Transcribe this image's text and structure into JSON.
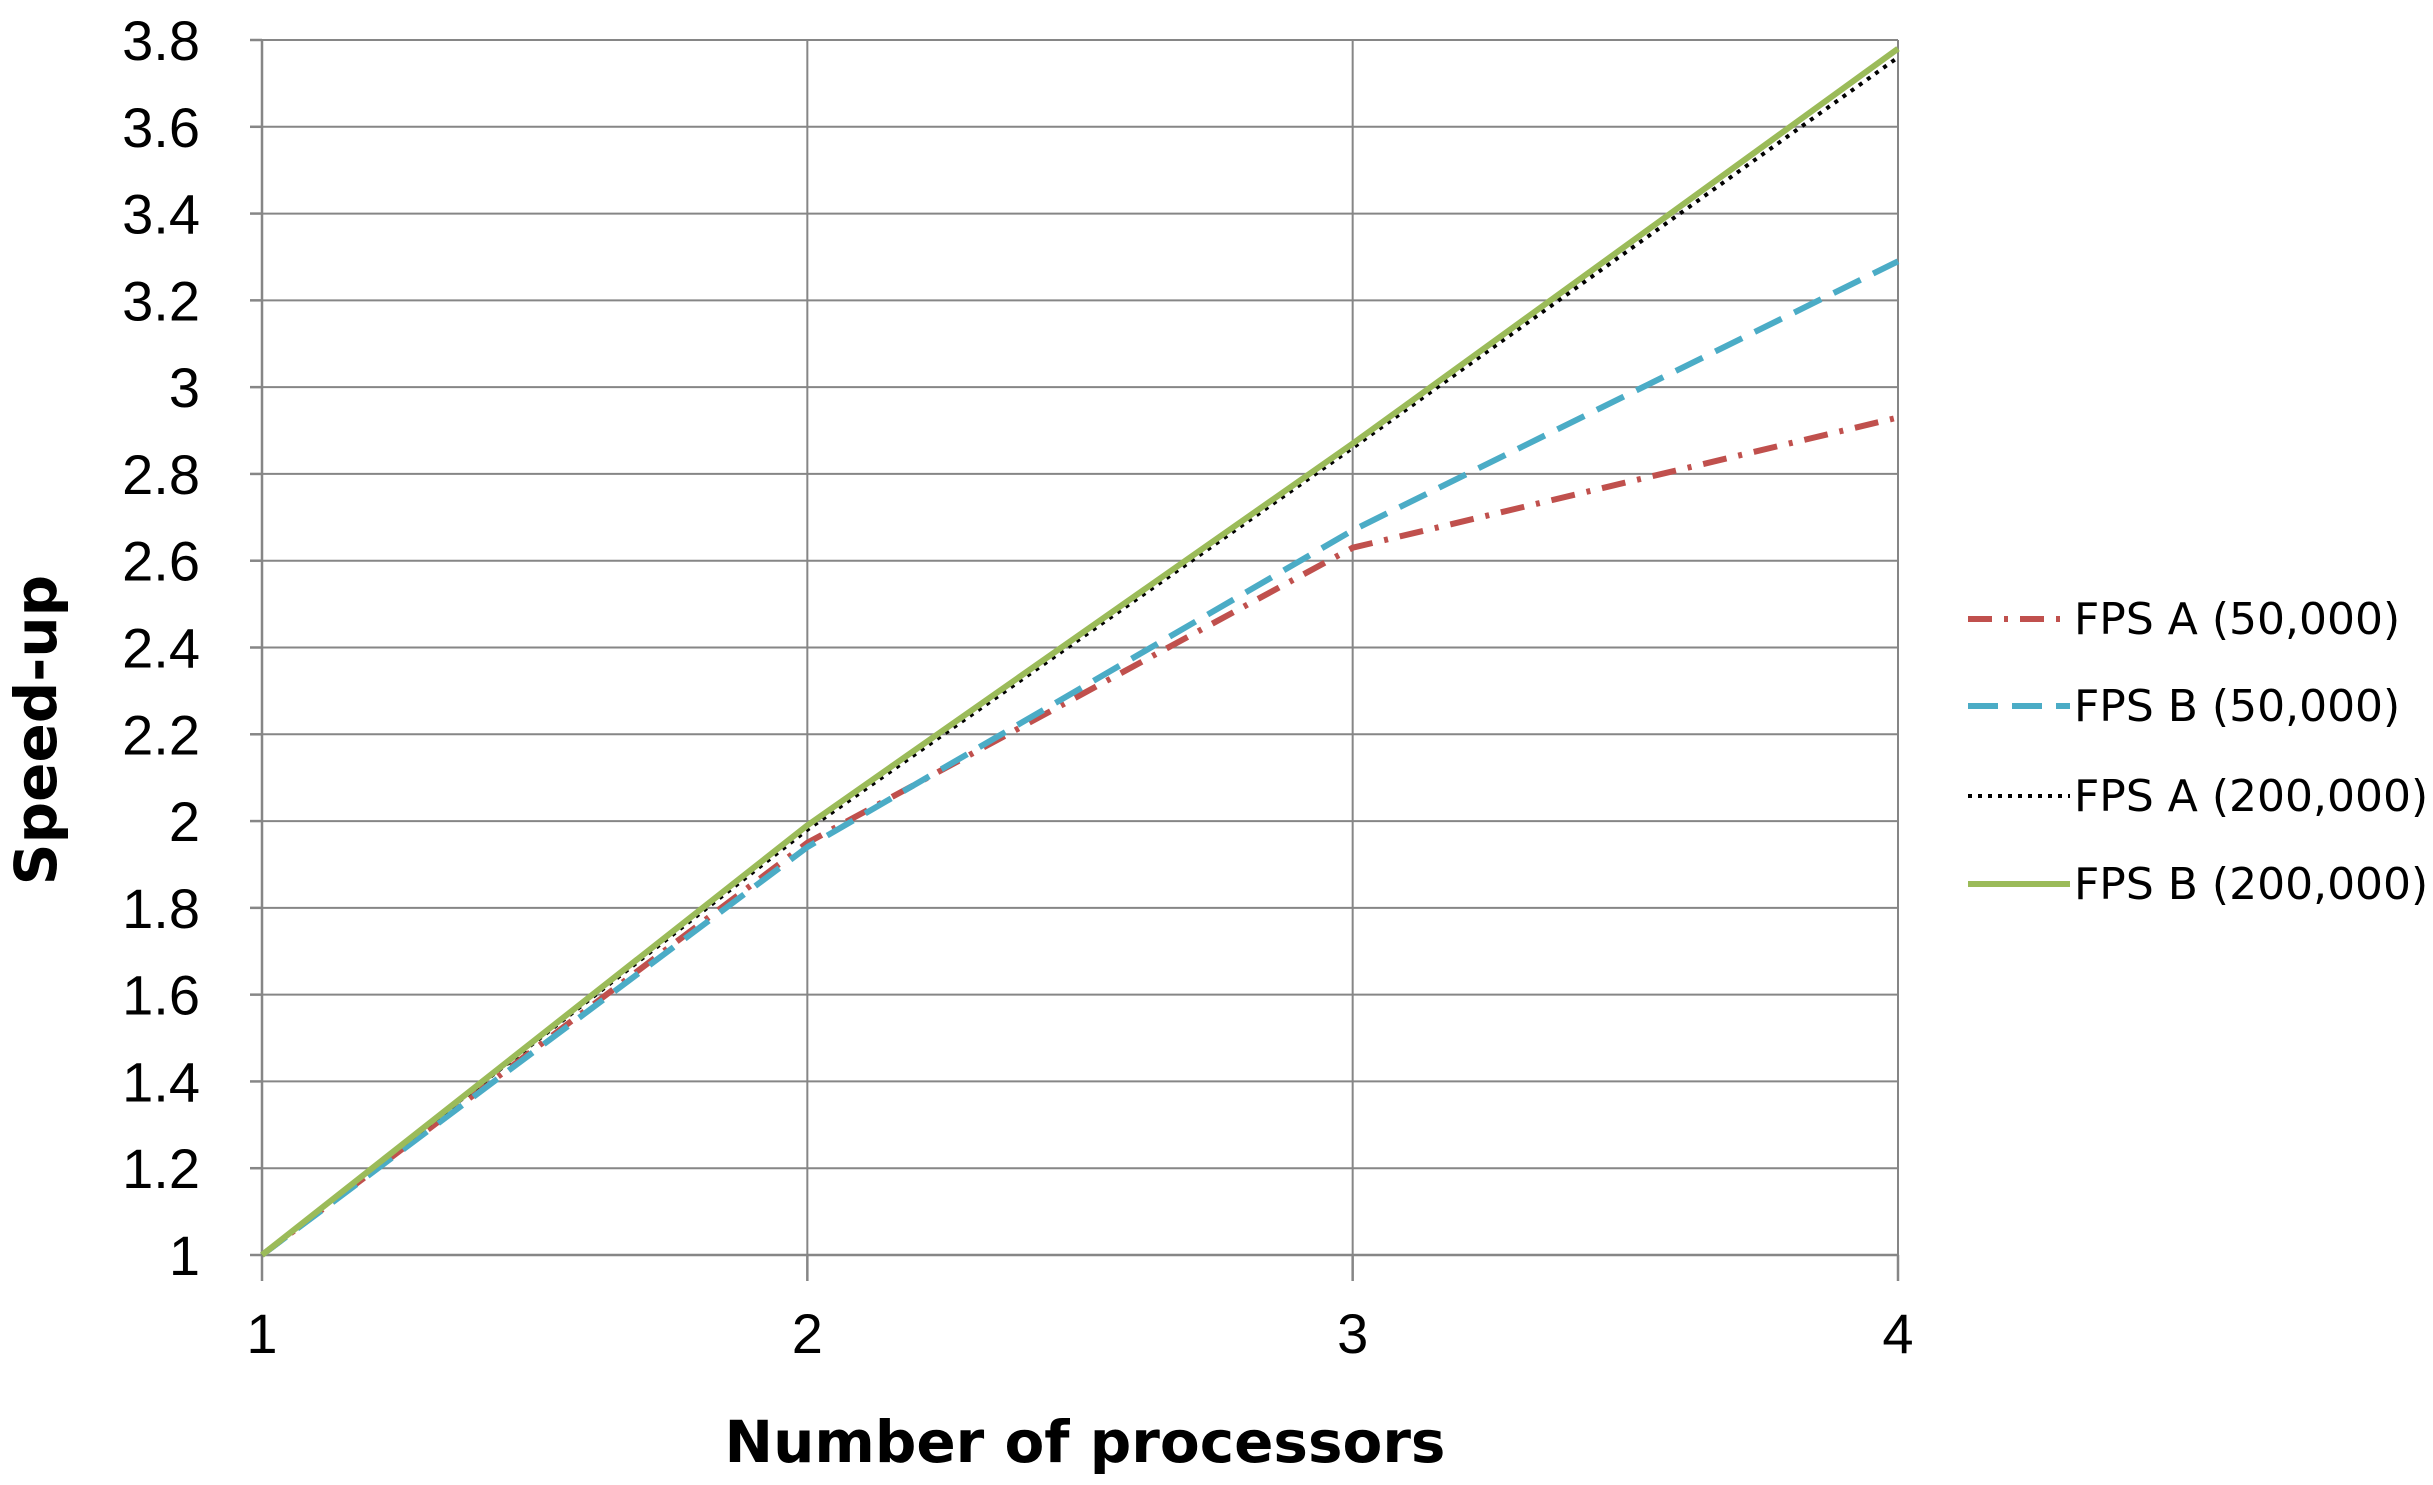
{
  "chart_data": {
    "type": "line",
    "title": "",
    "xlabel": "Number of processors",
    "ylabel": "Speed-up",
    "xlim": [
      1,
      4
    ],
    "ylim": [
      1,
      3.8
    ],
    "x_ticks": [
      1,
      2,
      3,
      4
    ],
    "x_tick_labels": [
      "1",
      "2",
      "3",
      "4"
    ],
    "y_ticks": [
      1,
      1.2,
      1.4,
      1.6,
      1.8,
      2,
      2.2,
      2.4,
      2.6,
      2.8,
      3,
      3.2,
      3.4,
      3.6,
      3.8
    ],
    "y_tick_labels": [
      "1",
      "1.2",
      "1.4",
      "1.6",
      "1.8",
      "2",
      "2.2",
      "2.4",
      "2.6",
      "2.8",
      "3",
      "3.2",
      "3.4",
      "3.6",
      "3.8"
    ],
    "grid": "horizontal",
    "legend_position": "right",
    "x": [
      1,
      2,
      3,
      4
    ],
    "series": [
      {
        "name": "FPS A (50,000)",
        "values": [
          1,
          1.95,
          2.63,
          2.93
        ],
        "color": "#c0504d",
        "style": "dash-dot"
      },
      {
        "name": "FPS B (50,000)",
        "values": [
          1,
          1.94,
          2.67,
          3.29
        ],
        "color": "#4bacc6",
        "style": "dashed"
      },
      {
        "name": "FPS A (200,000)",
        "values": [
          1,
          1.98,
          2.86,
          3.76
        ],
        "color": "#000000",
        "style": "dotted"
      },
      {
        "name": "FPS B (200,000)",
        "values": [
          1,
          1.99,
          2.87,
          3.78
        ],
        "color": "#9bbb59",
        "style": "solid"
      }
    ]
  }
}
